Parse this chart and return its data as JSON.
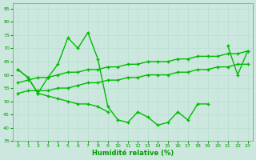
{
  "x": [
    0,
    1,
    2,
    3,
    4,
    5,
    6,
    7,
    8,
    9,
    10,
    11,
    12,
    13,
    14,
    15,
    16,
    17,
    18,
    19,
    20,
    21,
    22,
    23
  ],
  "line1_y": [
    62,
    59,
    53,
    59,
    64,
    74,
    70,
    76,
    66,
    48,
    43,
    42,
    46,
    44,
    41,
    42,
    46,
    43,
    49,
    49,
    null,
    71,
    60,
    69
  ],
  "line2_y": [
    57,
    58,
    59,
    59,
    60,
    61,
    61,
    62,
    62,
    63,
    63,
    64,
    64,
    65,
    65,
    65,
    66,
    66,
    67,
    67,
    67,
    68,
    68,
    69
  ],
  "line3_y": [
    53,
    54,
    54,
    54,
    55,
    55,
    56,
    57,
    57,
    58,
    58,
    59,
    59,
    60,
    60,
    60,
    61,
    61,
    62,
    62,
    63,
    63,
    64,
    64
  ],
  "line4_x": [
    0,
    1,
    2,
    3,
    4,
    5,
    6,
    7,
    8,
    9
  ],
  "line4_y": [
    62,
    59,
    53,
    52,
    51,
    50,
    49,
    49,
    48,
    46
  ],
  "line_color": "#00bb00",
  "xlabel": "Humidité relative (%)",
  "xlabel_color": "#009900",
  "xlim": [
    -0.5,
    23.5
  ],
  "ylim": [
    35,
    87
  ],
  "yticks": [
    35,
    40,
    45,
    50,
    55,
    60,
    65,
    70,
    75,
    80,
    85
  ],
  "xticks": [
    0,
    1,
    2,
    3,
    4,
    5,
    6,
    7,
    8,
    9,
    10,
    11,
    12,
    13,
    14,
    15,
    16,
    17,
    18,
    19,
    20,
    21,
    22,
    23
  ],
  "grid_color": "#b8ddd0",
  "bg_color": "#cce8de",
  "linewidth": 1.0,
  "markersize": 2.5,
  "marker": "+"
}
